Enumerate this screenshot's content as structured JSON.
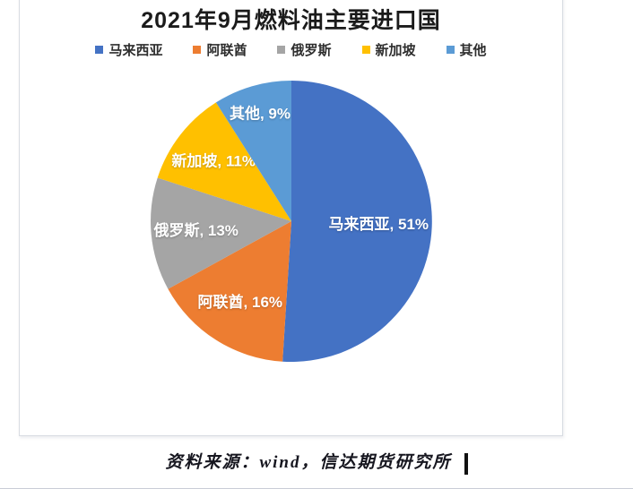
{
  "chart_data": {
    "type": "pie",
    "title": "2021年9月燃料油主要进口国",
    "categories": [
      "马来西亚",
      "阿联酋",
      "俄罗斯",
      "新加坡",
      "其他"
    ],
    "values": [
      51,
      16,
      13,
      11,
      9
    ],
    "unit": "%",
    "colors": [
      "#4472C4",
      "#ED7D31",
      "#A5A5A5",
      "#FFC000",
      "#5B9BD5"
    ],
    "data_labels": [
      "马来西亚, 51%",
      "阿联酋, 16%",
      "俄罗斯, 13%",
      "新加坡, 11%",
      "其他, 9%"
    ],
    "start_angle_deg": 0,
    "direction": "clockwise",
    "legend_position": "top",
    "label_text_color": "#ffffff"
  },
  "footer": {
    "source_text": "资料来源：wind，信达期货研究所"
  }
}
